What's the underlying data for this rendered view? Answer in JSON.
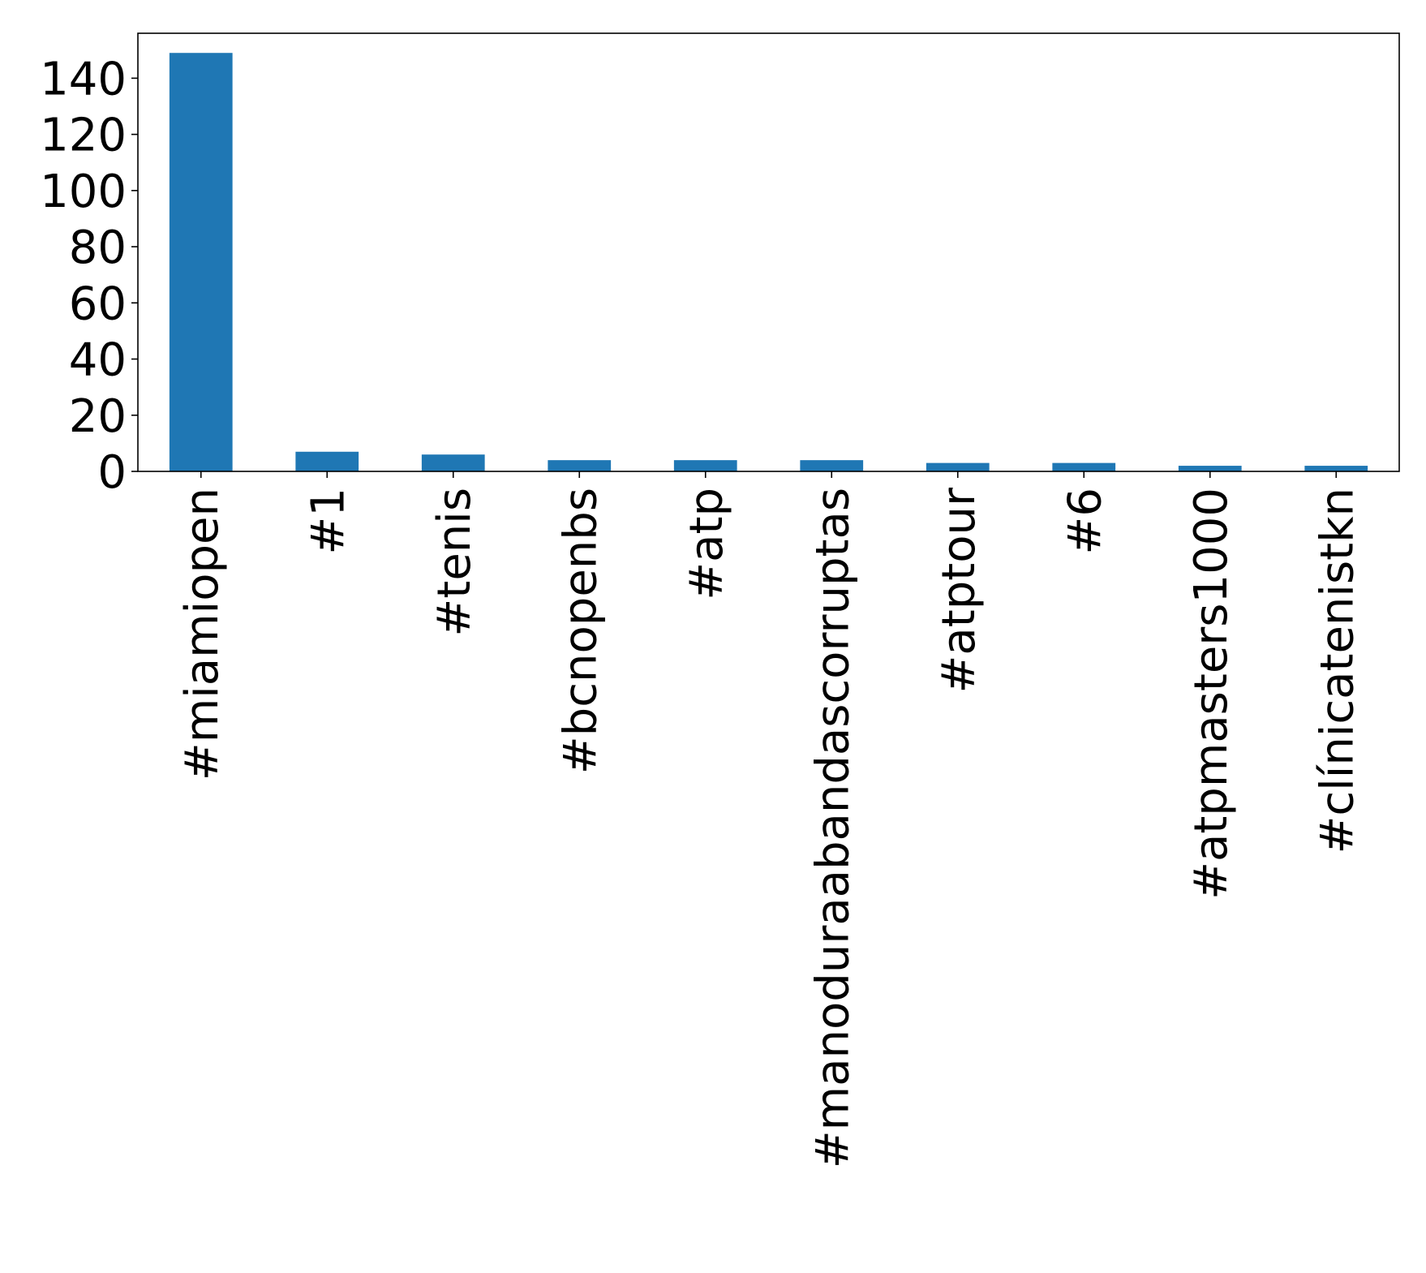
{
  "chart_data": {
    "type": "bar",
    "title": "",
    "xlabel": "",
    "ylabel": "",
    "categories": [
      "#miamiopen",
      "#1",
      "#tenis",
      "#bcnopenbs",
      "#atp",
      "#manoduraabandascorruptas",
      "#atptour",
      "#6",
      "#atpmasters1000",
      "#clínicatenistkn"
    ],
    "values": [
      149,
      7,
      6,
      4,
      4,
      4,
      3,
      3,
      2,
      2
    ],
    "ylim": [
      0,
      156
    ],
    "yticks": [
      0,
      20,
      40,
      60,
      80,
      100,
      120,
      140
    ],
    "grid": false,
    "legend": "none",
    "bar_color": "#1f77b4"
  }
}
